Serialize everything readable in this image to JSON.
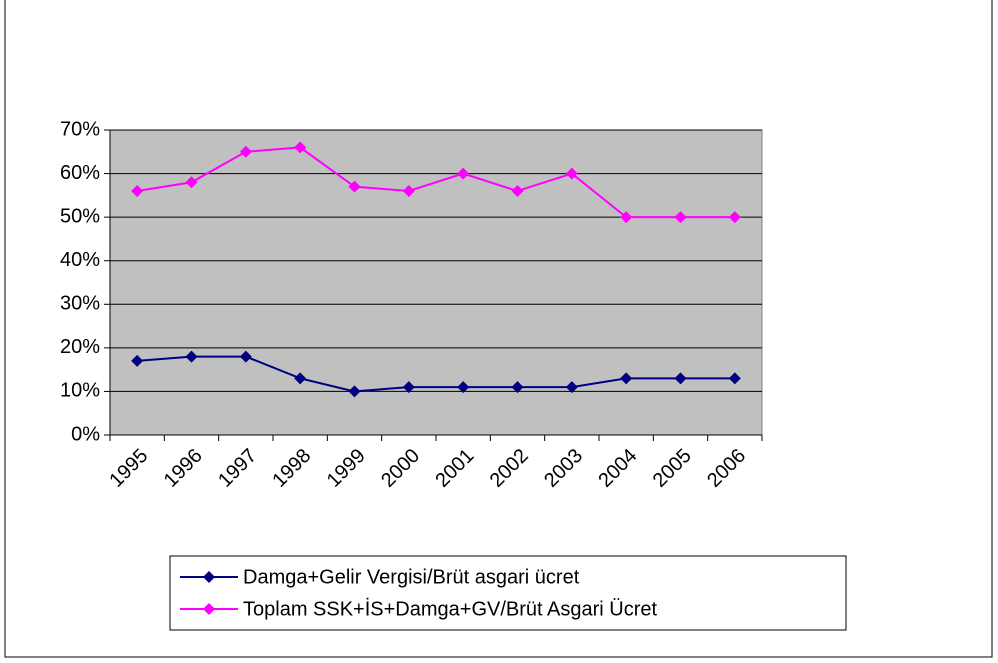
{
  "chart_data": {
    "type": "line",
    "categories": [
      "1995",
      "1996",
      "1997",
      "1998",
      "1999",
      "2000",
      "2001",
      "2002",
      "2003",
      "2004",
      "2005",
      "2006"
    ],
    "series": [
      {
        "name": "Damga+Gelir Vergisi/Brüt asgari ücret",
        "color": "#000080",
        "values": [
          17,
          18,
          18,
          13,
          10,
          11,
          11,
          11,
          11,
          13,
          13,
          13
        ]
      },
      {
        "name": "Toplam SSK+İS+Damga+GV/Brüt Asgari Ücret",
        "color": "#ff00ff",
        "values": [
          56,
          58,
          65,
          66,
          57,
          56,
          60,
          56,
          60,
          50,
          50,
          50
        ]
      }
    ],
    "ylim": [
      0,
      70
    ],
    "yticks": [
      {
        "value": 0,
        "label": "0%"
      },
      {
        "value": 10,
        "label": "10%"
      },
      {
        "value": 20,
        "label": "20%"
      },
      {
        "value": 30,
        "label": "30%"
      },
      {
        "value": 40,
        "label": "40%"
      },
      {
        "value": 50,
        "label": "50%"
      },
      {
        "value": 60,
        "label": "60%"
      },
      {
        "value": 70,
        "label": "70%"
      }
    ],
    "grid": true,
    "legend": "bottom",
    "plot_background": "#c0c0c0"
  }
}
